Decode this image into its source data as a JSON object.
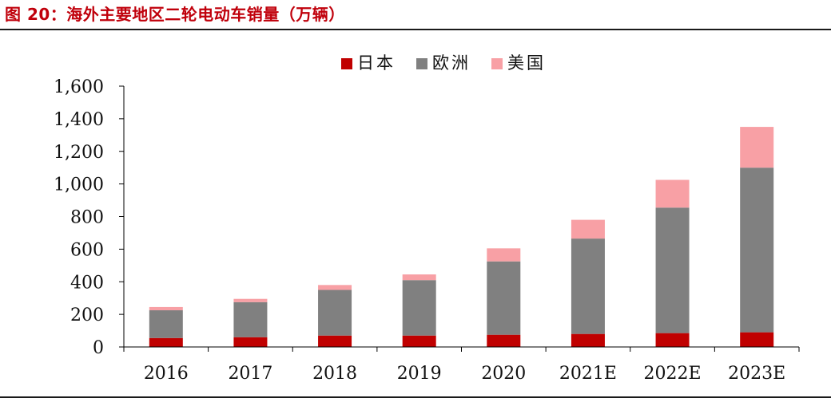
{
  "figure": {
    "title": "图 20：海外主要地区二轮电动车销量（万辆）"
  },
  "colors": {
    "title": "#c0000b",
    "japan": "#c00000",
    "europe": "#808080",
    "usa": "#f8a0a5",
    "axis": "#000000",
    "rule": "#1a1a1a"
  },
  "chart_data": {
    "type": "bar",
    "stacked": true,
    "title": "",
    "xlabel": "",
    "ylabel": "",
    "categories": [
      "2016",
      "2017",
      "2018",
      "2019",
      "2020",
      "2021E",
      "2022E",
      "2023E"
    ],
    "series": [
      {
        "name": "日本",
        "color": "#c00000",
        "values": [
          55,
          60,
          70,
          70,
          75,
          80,
          85,
          90
        ]
      },
      {
        "name": "欧洲",
        "color": "#808080",
        "values": [
          170,
          215,
          280,
          340,
          450,
          585,
          770,
          1010
        ]
      },
      {
        "name": "美国",
        "color": "#f8a0a5",
        "values": [
          20,
          20,
          30,
          35,
          80,
          115,
          170,
          250
        ]
      }
    ],
    "ylim": [
      0,
      1600
    ],
    "yticks": [
      0,
      200,
      400,
      600,
      800,
      1000,
      1200,
      1400,
      1600
    ],
    "ytick_labels": [
      "0",
      "200",
      "400",
      "600",
      "800",
      "1,000",
      "1,200",
      "1,400",
      "1,600"
    ],
    "grid": false,
    "legend_position": "top-center"
  }
}
